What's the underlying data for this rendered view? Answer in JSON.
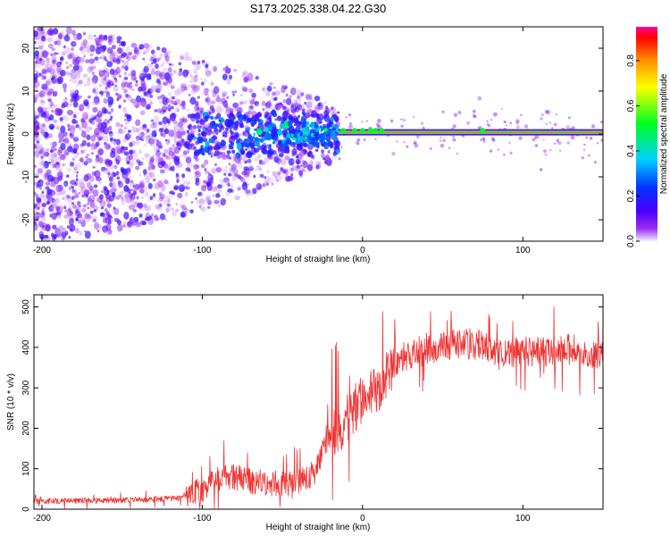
{
  "figure_title": "S173.2025.338.04.22.G30",
  "chart_data": [
    {
      "type": "heatmap",
      "title": "S173.2025.338.04.22.G30",
      "xlabel": "Height of straight line (km)",
      "ylabel": "Frequency (Hz)",
      "xlim": [
        -205,
        150
      ],
      "ylim": [
        -25,
        25
      ],
      "x_ticks": [
        -200,
        -100,
        0,
        100
      ],
      "y_ticks": [
        -20,
        -10,
        0,
        10,
        20
      ],
      "x_tick_labels": [
        "-200",
        "-100",
        "0",
        "100"
      ],
      "y_tick_labels": [
        "-20",
        "-10",
        "0",
        "10",
        "20"
      ],
      "colorbar": {
        "label": "Normalized spectral amplitude",
        "range": [
          0,
          0.95
        ],
        "ticks": [
          0.0,
          0.2,
          0.4,
          0.6,
          0.8
        ],
        "tick_labels": [
          "0.0",
          "0.2",
          "0.4",
          "0.6",
          "0.8"
        ],
        "colors": [
          "#f2eeff",
          "#8800ee",
          "#0000ff",
          "#00ccff",
          "#00ff00",
          "#ffff00",
          "#ff9900",
          "#ff0000",
          "#ff0099"
        ]
      },
      "features": {
        "noise_region_x": [
          -205,
          -15
        ],
        "carrier_line_x": [
          -15,
          150
        ],
        "carrier_frequency_hz": 0.4,
        "carrier_line_amplitude": 0.9
      }
    },
    {
      "type": "line",
      "xlabel": "Height of straight line (km)",
      "ylabel": "SNR (10 * v/v)",
      "xlim": [
        -205,
        150
      ],
      "ylim": [
        0,
        530
      ],
      "x_ticks": [
        -200,
        -100,
        0,
        100
      ],
      "y_ticks": [
        0,
        100,
        200,
        300,
        400,
        500
      ],
      "x_tick_labels": [
        "-200",
        "-100",
        "0",
        "100"
      ],
      "y_tick_labels": [
        "0",
        "100",
        "200",
        "300",
        "400",
        "500"
      ],
      "line_color": "#ee3333",
      "trend": {
        "x": [
          -205,
          -150,
          -115,
          -100,
          -90,
          -80,
          -70,
          -60,
          -50,
          -40,
          -30,
          -22,
          -18,
          -12,
          -5,
          0,
          5,
          10,
          15,
          20,
          30,
          45,
          60,
          75,
          90,
          110,
          130,
          150
        ],
        "y": [
          20,
          22,
          27,
          45,
          75,
          80,
          70,
          65,
          60,
          65,
          90,
          175,
          190,
          210,
          250,
          270,
          290,
          300,
          330,
          365,
          385,
          400,
          410,
          405,
          385,
          390,
          395,
          380
        ]
      }
    }
  ]
}
